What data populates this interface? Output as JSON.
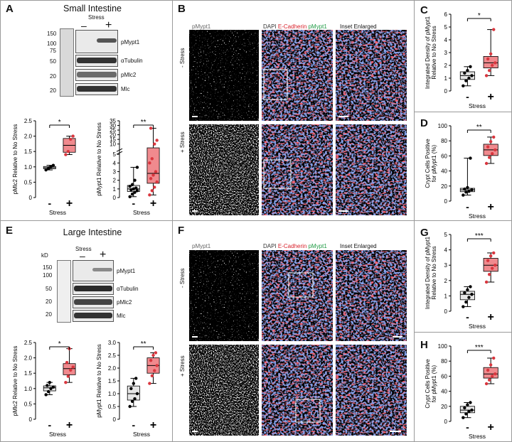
{
  "panels": {
    "A": {
      "letter": "A",
      "title": "Small Intestine",
      "kd_label": "",
      "stress_header": "Stress",
      "minus": "–",
      "plus": "+",
      "markers": [
        "150",
        "100",
        "75",
        "50",
        "20",
        "20"
      ],
      "blot_labels": [
        "pMypt1",
        "αTubulin",
        "pMlc2",
        "Mlc"
      ]
    },
    "B": {
      "letter": "B",
      "col_labels": [
        "pMypt1",
        "DAPI",
        "E-Cadherin",
        "pMypt1",
        "Inset Enlarged"
      ],
      "row_labels": [
        "- Stress",
        "+ Stress"
      ]
    },
    "C": {
      "letter": "C"
    },
    "D": {
      "letter": "D"
    },
    "E": {
      "letter": "E",
      "title": "Large Intestine",
      "kd_label": "kD",
      "stress_header": "Stress",
      "minus": "–",
      "plus": "+",
      "markers": [
        "150",
        "100",
        "50",
        "20",
        "20"
      ],
      "blot_labels": [
        "pMypt1",
        "αTubulin",
        "pMlc2",
        "Mlc"
      ]
    },
    "F": {
      "letter": "F",
      "col_labels": [
        "pMypt1",
        "DAPI",
        "E-Cadherin",
        "pMypt1",
        "Inset Enlarged"
      ],
      "row_labels": [
        "- Stress",
        "+ Stress"
      ]
    },
    "G": {
      "letter": "G"
    },
    "H": {
      "letter": "H"
    }
  },
  "colors": {
    "box_control": "#e6e6e6",
    "box_stress": "#f08a8e",
    "point_control": "#000000",
    "point_stress": "#d9363e",
    "cadherin": "#e8202a",
    "pmypt1": "#22b04a",
    "dapi": "#3b5bd6"
  },
  "chart_data": [
    {
      "id": "A-left",
      "type": "box",
      "ylabel": "pMlc2 Relative to No Stress",
      "xlabel": "Stress",
      "categories": [
        "-",
        "+"
      ],
      "ylim": [
        0,
        2.5
      ],
      "yticks": [
        "0",
        "0.5",
        "1.0",
        "1.5",
        "2.0",
        "2.5"
      ],
      "significance": "*",
      "series": [
        {
          "values": [
            0.9,
            0.95,
            1.0,
            1.05
          ]
        },
        {
          "values": [
            1.4,
            1.5,
            1.9,
            2.0
          ]
        }
      ]
    },
    {
      "id": "A-right",
      "type": "box",
      "broken_axis": true,
      "ylabel": "pMypt1 Relative to No Stress",
      "xlabel": "Stress",
      "categories": [
        "-",
        "+"
      ],
      "ylim": [
        0,
        35
      ],
      "yticks": [
        "0",
        "1",
        "2",
        "3",
        "4",
        "5",
        "10",
        "15",
        "20",
        "25",
        "30",
        "35"
      ],
      "significance": "**",
      "series": [
        {
          "values": [
            0.1,
            0.4,
            0.6,
            0.8,
            0.9,
            1.0,
            1.1,
            1.3,
            1.5,
            2.0,
            3.5
          ]
        },
        {
          "values": [
            0.3,
            0.8,
            1.2,
            1.8,
            2.2,
            2.6,
            3.0,
            4.0,
            4.5,
            10,
            14,
            27
          ]
        }
      ]
    },
    {
      "id": "C",
      "type": "box",
      "ylabel": "Integrated Density of pMypt1 Relative to No Stress",
      "xlabel": "Stress",
      "categories": [
        "-",
        "+"
      ],
      "ylim": [
        0,
        6
      ],
      "yticks": [
        "0",
        "1",
        "2",
        "3",
        "4",
        "5",
        "6"
      ],
      "significance": "*",
      "series": [
        {
          "values": [
            0.4,
            0.8,
            1.0,
            1.2,
            1.4,
            1.6,
            1.9
          ]
        },
        {
          "values": [
            1.2,
            1.6,
            2.0,
            2.2,
            2.5,
            2.9,
            4.8
          ]
        }
      ]
    },
    {
      "id": "D",
      "type": "box",
      "ylabel": "Crypt Cells Positive for pMypt1 (%)",
      "xlabel": "Stress",
      "categories": [
        "-",
        "+"
      ],
      "ylim": [
        0,
        100
      ],
      "yticks": [
        "0",
        "20",
        "40",
        "60",
        "80",
        "100"
      ],
      "significance": "**",
      "series": [
        {
          "values": [
            8,
            12,
            13,
            15,
            16,
            18,
            57
          ]
        },
        {
          "values": [
            50,
            58,
            63,
            68,
            72,
            79,
            85
          ]
        }
      ]
    },
    {
      "id": "E-left",
      "type": "box",
      "ylabel": "pMlc2 Relative to No Stress",
      "xlabel": "Stress",
      "categories": [
        "-",
        "+"
      ],
      "ylim": [
        0,
        2.5
      ],
      "yticks": [
        "0",
        "0.5",
        "1.0",
        "1.5",
        "2.0",
        "2.5"
      ],
      "significance": "*",
      "series": [
        {
          "values": [
            0.8,
            0.9,
            1.0,
            1.05,
            1.1,
            1.2
          ]
        },
        {
          "values": [
            1.2,
            1.4,
            1.6,
            1.7,
            1.85,
            2.3
          ]
        }
      ]
    },
    {
      "id": "E-right",
      "type": "box",
      "ylabel": "pMypt1 Relative to No Stress",
      "xlabel": "Stress",
      "categories": [
        "-",
        "+"
      ],
      "ylim": [
        0,
        3
      ],
      "yticks": [
        "0",
        "0.5",
        "1.0",
        "1.5",
        "2.0",
        "2.5",
        "3.0"
      ],
      "significance": "**",
      "series": [
        {
          "values": [
            0.5,
            0.7,
            0.8,
            1.0,
            1.2,
            1.4,
            1.6
          ]
        },
        {
          "values": [
            1.4,
            1.7,
            1.9,
            2.1,
            2.3,
            2.5,
            2.6
          ]
        }
      ]
    },
    {
      "id": "G",
      "type": "box",
      "ylabel": "Integrated Density of pMypt1 Relative to No Stress",
      "xlabel": "Stress",
      "categories": [
        "-",
        "+"
      ],
      "ylim": [
        0,
        5
      ],
      "yticks": [
        "0",
        "1",
        "2",
        "3",
        "4",
        "5"
      ],
      "significance": "***",
      "series": [
        {
          "values": [
            0.3,
            0.6,
            0.9,
            1.1,
            1.2,
            1.4,
            1.6
          ]
        },
        {
          "values": [
            1.9,
            2.4,
            2.8,
            3.0,
            3.3,
            3.6,
            3.8
          ]
        }
      ]
    },
    {
      "id": "H",
      "type": "box",
      "ylabel": "Crypt Cells Positive for pMypt1 (%)",
      "xlabel": "Stress",
      "categories": [
        "-",
        "+"
      ],
      "ylim": [
        0,
        100
      ],
      "yticks": [
        "0",
        "20",
        "40",
        "60",
        "80",
        "100"
      ],
      "significance": "***",
      "series": [
        {
          "values": [
            5,
            10,
            13,
            15,
            18,
            22,
            25
          ]
        },
        {
          "values": [
            50,
            55,
            60,
            63,
            68,
            75,
            84
          ]
        }
      ]
    }
  ]
}
